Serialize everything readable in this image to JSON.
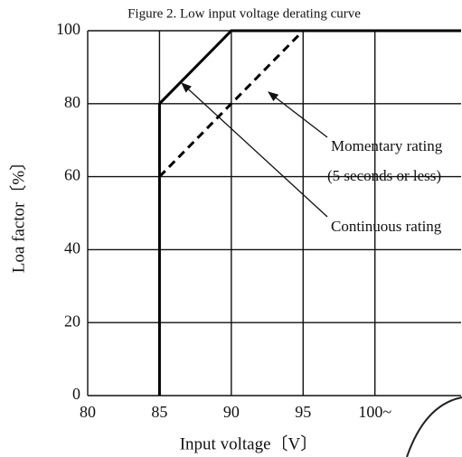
{
  "chart_data": {
    "type": "line",
    "title": "Figure 2. Low input voltage derating curve",
    "x_label": "Input voltage〔V〕",
    "y_label": "Loa factor〔%〕",
    "series": [
      {
        "name": "Continuous rating",
        "color": "#000000",
        "dashed": false,
        "x": [
          85,
          85,
          90,
          106
        ],
        "values": [
          0,
          80,
          100,
          100
        ]
      },
      {
        "name": "Momentary rating",
        "color": "#000000",
        "dashed": true,
        "x": [
          85,
          95
        ],
        "values": [
          60,
          100
        ]
      }
    ],
    "annotations": [
      "Momentary rating",
      "(5 seconds or less)",
      "Continuous rating"
    ],
    "xlim": [
      80,
      106
    ],
    "xticks": [
      80,
      85,
      90,
      95,
      {
        "value": 100,
        "label": "100~"
      }
    ],
    "ylim": [
      0,
      100
    ],
    "yticks": [
      0,
      20,
      40,
      60,
      80,
      100
    ],
    "grid": true
  }
}
